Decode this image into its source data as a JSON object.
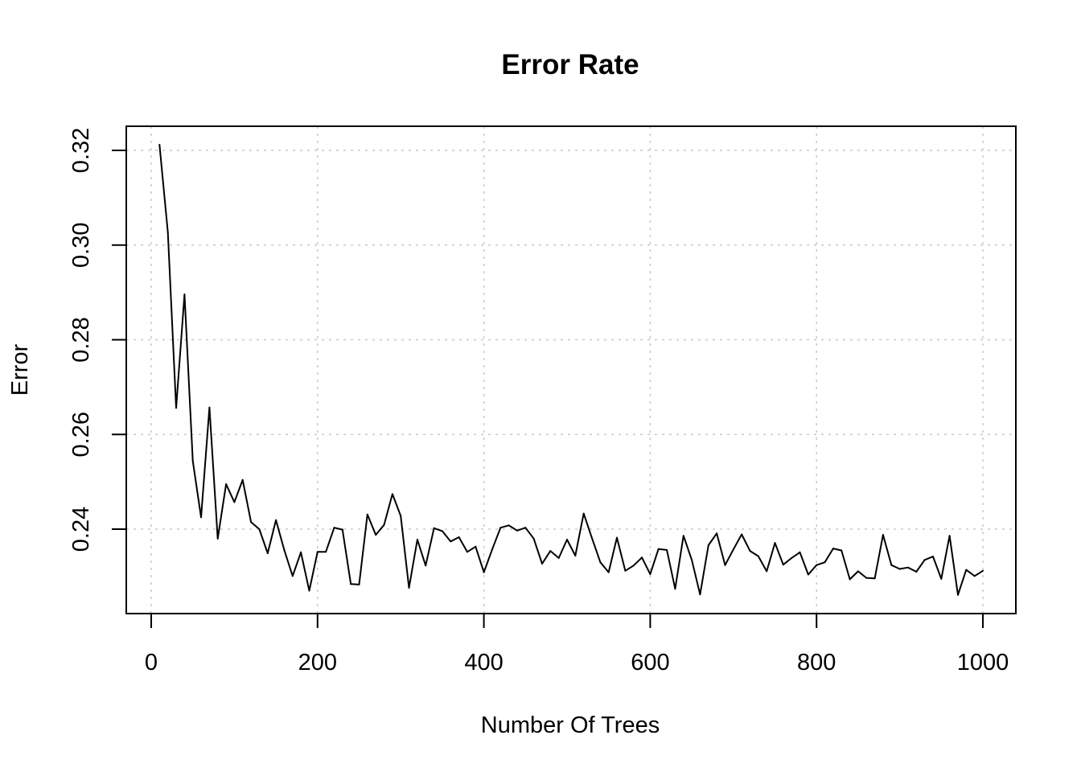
{
  "chart_data": {
    "type": "line",
    "title": "Error Rate",
    "xlabel": "Number Of Trees",
    "ylabel": "Error",
    "xlim": [
      0,
      1000
    ],
    "ylim": [
      0.225,
      0.325
    ],
    "grid": true,
    "x_ticks": [
      0,
      200,
      400,
      600,
      800,
      1000
    ],
    "x_tick_labels": [
      "0",
      "200",
      "400",
      "600",
      "800",
      "1000"
    ],
    "y_ticks": [
      0.24,
      0.26,
      0.28,
      0.3,
      0.32
    ],
    "y_tick_labels": [
      "0.24",
      "0.26",
      "0.28",
      "0.30",
      "0.32"
    ],
    "series": [
      {
        "color": "#000000",
        "x": [
          10,
          20,
          30,
          40,
          50,
          60,
          70,
          80,
          90,
          100,
          110,
          120,
          130,
          140,
          150,
          160,
          170,
          180,
          190,
          200,
          210,
          220,
          230,
          240,
          250,
          260,
          270,
          280,
          290,
          300,
          310,
          320,
          330,
          340,
          350,
          360,
          370,
          380,
          390,
          400,
          410,
          420,
          430,
          440,
          450,
          460,
          470,
          480,
          490,
          500,
          510,
          520,
          530,
          540,
          550,
          560,
          570,
          580,
          590,
          600,
          610,
          620,
          630,
          640,
          650,
          660,
          670,
          680,
          690,
          700,
          710,
          720,
          730,
          740,
          750,
          760,
          770,
          780,
          790,
          800,
          810,
          820,
          830,
          840,
          850,
          860,
          870,
          880,
          890,
          900,
          910,
          920,
          930,
          940,
          950,
          960,
          970,
          980,
          990,
          1000
        ],
        "values": [
          0.3212,
          0.3027,
          0.2656,
          0.2896,
          0.2544,
          0.2425,
          0.2657,
          0.238,
          0.2495,
          0.2457,
          0.2504,
          0.2415,
          0.24,
          0.2349,
          0.2419,
          0.2356,
          0.2301,
          0.2351,
          0.227,
          0.2352,
          0.2352,
          0.2403,
          0.2399,
          0.2284,
          0.2283,
          0.2431,
          0.2388,
          0.2409,
          0.2474,
          0.2428,
          0.2276,
          0.2378,
          0.2323,
          0.2402,
          0.2396,
          0.2374,
          0.2383,
          0.2352,
          0.2363,
          0.2309,
          0.2357,
          0.2403,
          0.2408,
          0.2397,
          0.2403,
          0.238,
          0.2327,
          0.2354,
          0.2339,
          0.2378,
          0.2344,
          0.2433,
          0.2381,
          0.233,
          0.2309,
          0.2382,
          0.2312,
          0.2323,
          0.234,
          0.2305,
          0.2358,
          0.2356,
          0.2274,
          0.2386,
          0.2335,
          0.2262,
          0.2366,
          0.2391,
          0.2324,
          0.2357,
          0.2389,
          0.2354,
          0.2343,
          0.2311,
          0.2371,
          0.2325,
          0.2339,
          0.2351,
          0.2304,
          0.2324,
          0.233,
          0.2359,
          0.2355,
          0.2294,
          0.2311,
          0.2297,
          0.2296,
          0.2388,
          0.2324,
          0.2316,
          0.2319,
          0.231,
          0.2335,
          0.2342,
          0.2295,
          0.2386,
          0.2261,
          0.2314,
          0.2301,
          0.2312
        ]
      }
    ]
  }
}
